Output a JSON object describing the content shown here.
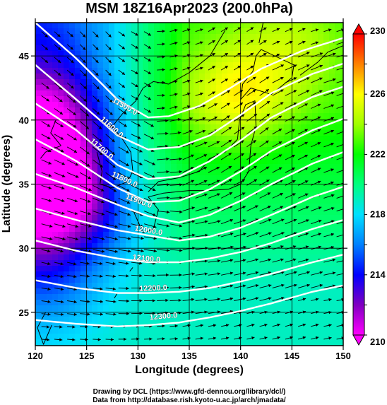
{
  "chart_data": {
    "type": "heatmap",
    "title": "MSM 18Z16Apr2023 (200.0hPa)",
    "xlabel": "Longitude (degrees)",
    "ylabel": "Latitude  (degrees)",
    "xlim": [
      120,
      150
    ],
    "ylim": [
      22.4,
      47.6
    ],
    "x_ticks": [
      120,
      125,
      130,
      135,
      140,
      145,
      150
    ],
    "y_ticks": [
      25,
      30,
      35,
      40,
      45
    ],
    "grid": true,
    "colorbar": {
      "min": 210,
      "max": 230,
      "ticks": [
        210,
        214,
        218,
        222,
        226,
        230
      ],
      "stops": [
        {
          "value": 210,
          "color": "#ff00ff"
        },
        {
          "value": 212,
          "color": "#8000c0"
        },
        {
          "value": 214,
          "color": "#0000ff"
        },
        {
          "value": 216,
          "color": "#0080ff"
        },
        {
          "value": 218,
          "color": "#00e0ff"
        },
        {
          "value": 220,
          "color": "#00ff80"
        },
        {
          "value": 222,
          "color": "#00ff00"
        },
        {
          "value": 224,
          "color": "#a0ff00"
        },
        {
          "value": 226,
          "color": "#ffff00"
        },
        {
          "value": 228,
          "color": "#ff8000"
        },
        {
          "value": 230,
          "color": "#ff0000"
        }
      ]
    },
    "temperature_field": {
      "trough_center": [
        120.5,
        36.5
      ],
      "trough_value": 209.5,
      "warm_centers": [
        [
          139.5,
          42.0,
          224.5
        ],
        [
          145.0,
          45.5,
          223.0
        ]
      ],
      "southern_value": 219.0
    },
    "contours": [
      {
        "label": "11500.0",
        "label_lon": 128.6,
        "label_lat": 40.9,
        "lon": [
          120,
          124,
          128,
          131,
          133,
          136,
          139,
          142,
          146,
          150
        ],
        "lat": [
          47.6,
          44.8,
          41.6,
          40.2,
          40.3,
          41.1,
          42.5,
          44.0,
          45.4,
          46.4
        ]
      },
      {
        "label": "11600.0",
        "label_lon": 127.3,
        "label_lat": 39.3,
        "lon": [
          120,
          124,
          128,
          131,
          134,
          137,
          140,
          143,
          147,
          150
        ],
        "lat": [
          44.3,
          41.6,
          38.8,
          37.7,
          37.9,
          38.8,
          40.4,
          42.1,
          43.6,
          44.4
        ]
      },
      {
        "label": "11700.0",
        "label_lon": 126.3,
        "label_lat": 37.6,
        "lon": [
          120,
          124,
          128,
          131,
          134,
          137,
          140,
          143,
          147,
          150
        ],
        "lat": [
          41.3,
          39.2,
          36.5,
          35.4,
          35.6,
          36.8,
          38.4,
          40.2,
          41.8,
          42.6
        ]
      },
      {
        "label": "11800.0",
        "label_lon": 128.6,
        "label_lat": 35.2,
        "lon": [
          120,
          124,
          128,
          131,
          134,
          137,
          140,
          143,
          147,
          150
        ],
        "lat": [
          38.5,
          36.8,
          34.7,
          33.6,
          33.7,
          34.6,
          36.0,
          37.6,
          39.2,
          40.1
        ]
      },
      {
        "label": "11900.0",
        "label_lon": 130.0,
        "label_lat": 33.5,
        "lon": [
          120,
          124,
          128,
          131,
          134,
          137,
          140,
          143,
          147,
          150
        ],
        "lat": [
          35.8,
          34.7,
          33.4,
          32.5,
          32.0,
          32.6,
          33.7,
          35.0,
          36.6,
          37.5
        ]
      },
      {
        "label": "12000.0",
        "label_lon": 131.0,
        "label_lat": 31.2,
        "lon": [
          120,
          124,
          128,
          131,
          134,
          137,
          140,
          143,
          147,
          150
        ],
        "lat": [
          33.1,
          32.2,
          31.4,
          31.0,
          30.6,
          30.9,
          31.6,
          32.6,
          34.0,
          34.8
        ]
      },
      {
        "label": "12100.0",
        "label_lon": 130.8,
        "label_lat": 29.0,
        "lon": [
          120,
          124,
          128,
          131,
          134,
          137,
          140,
          143,
          147,
          150
        ],
        "lat": [
          30.6,
          29.8,
          29.2,
          28.9,
          28.9,
          29.2,
          29.7,
          30.4,
          31.5,
          32.2
        ]
      },
      {
        "label": "12200.0",
        "label_lon": 131.5,
        "label_lat": 26.7,
        "lon": [
          120,
          124,
          128,
          131,
          134,
          137,
          140,
          143,
          147,
          150
        ],
        "lat": [
          27.5,
          26.9,
          26.5,
          26.5,
          26.6,
          26.9,
          27.4,
          28.0,
          28.9,
          29.5
        ]
      },
      {
        "label": "12300.0",
        "label_lon": 132.5,
        "label_lat": 24.5,
        "lon": [
          120,
          124,
          128,
          131,
          134,
          137,
          140,
          143,
          147,
          150
        ],
        "lat": [
          24.4,
          24.1,
          23.9,
          24.0,
          24.2,
          24.6,
          25.1,
          25.7,
          26.6,
          27.1
        ]
      }
    ],
    "wind_vectors": {
      "lon_step": 1.25,
      "lat_step": 1.0,
      "description_source": "arrows follow the geopotential height contours"
    },
    "credits": [
      "Drawing by DCL (https://www.gfd-dennou.org/library/dcl/)",
      "Data from http://database.rish.kyoto-u.ac.jp/arch/jmadata/"
    ]
  }
}
